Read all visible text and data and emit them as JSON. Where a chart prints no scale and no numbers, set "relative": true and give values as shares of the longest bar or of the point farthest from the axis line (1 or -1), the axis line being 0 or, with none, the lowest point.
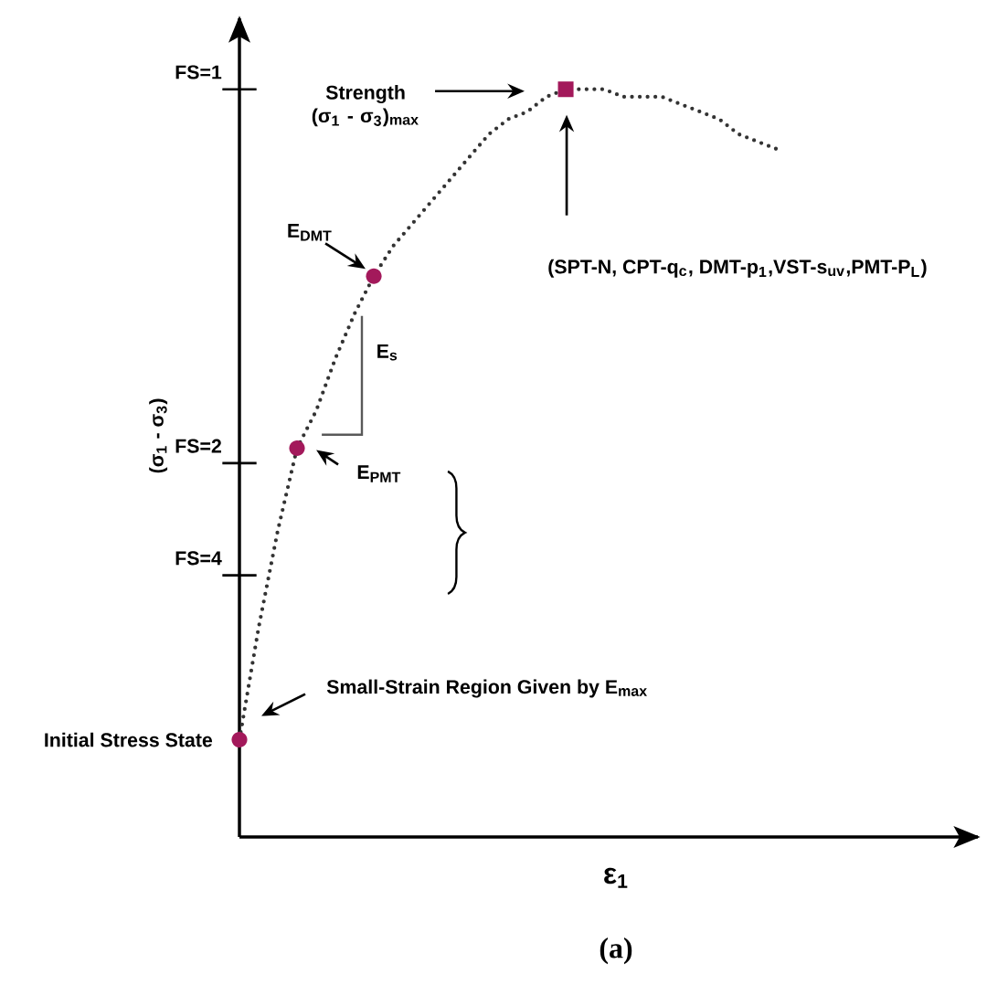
{
  "chart_data": {
    "type": "line",
    "relative": true,
    "xlabel": "ε$_{1}$",
    "ylabel": "(σ$_{1}$ - σ$_{3}$)",
    "categories": [
      null,
      null,
      null,
      null,
      null,
      null,
      null,
      null,
      null,
      null,
      null,
      null,
      null,
      null,
      null,
      null,
      null,
      null,
      null,
      null,
      null,
      null,
      null,
      null,
      null,
      null,
      null,
      null,
      null
    ],
    "series": [
      {
        "color": "#333333",
        "line_style": "dotted",
        "marker": "none",
        "values": [
          0.13,
          0.28,
          0.41,
          0.52,
          0.57,
          0.64,
          0.7,
          0.75,
          0.79,
          0.82,
          0.85,
          0.88,
          0.91,
          0.94,
          0.96,
          0.97,
          0.99,
          1,
          1,
          1,
          0.99,
          0.99,
          0.99,
          0.98,
          0.97,
          0.96,
          0.94,
          0.93,
          0.92
        ]
      }
    ],
    "annotations": [
      "FS=1",
      "FS=2",
      "FS=4",
      "Strength (σ$_{1}$ - σ$_{3}$)$_{max}$",
      "(SPT-N, CPT-q$_{c}$, DMT-p$_{1}$,VST-s$_{uv}$,PMT-P$_{L}$)",
      "E$_{DMT}$",
      "E$_{s}$",
      "E$_{PMT}$",
      "Small-Strain Region Given by E$_{max}$",
      "Initial Stress State",
      "(a)"
    ]
  }
}
